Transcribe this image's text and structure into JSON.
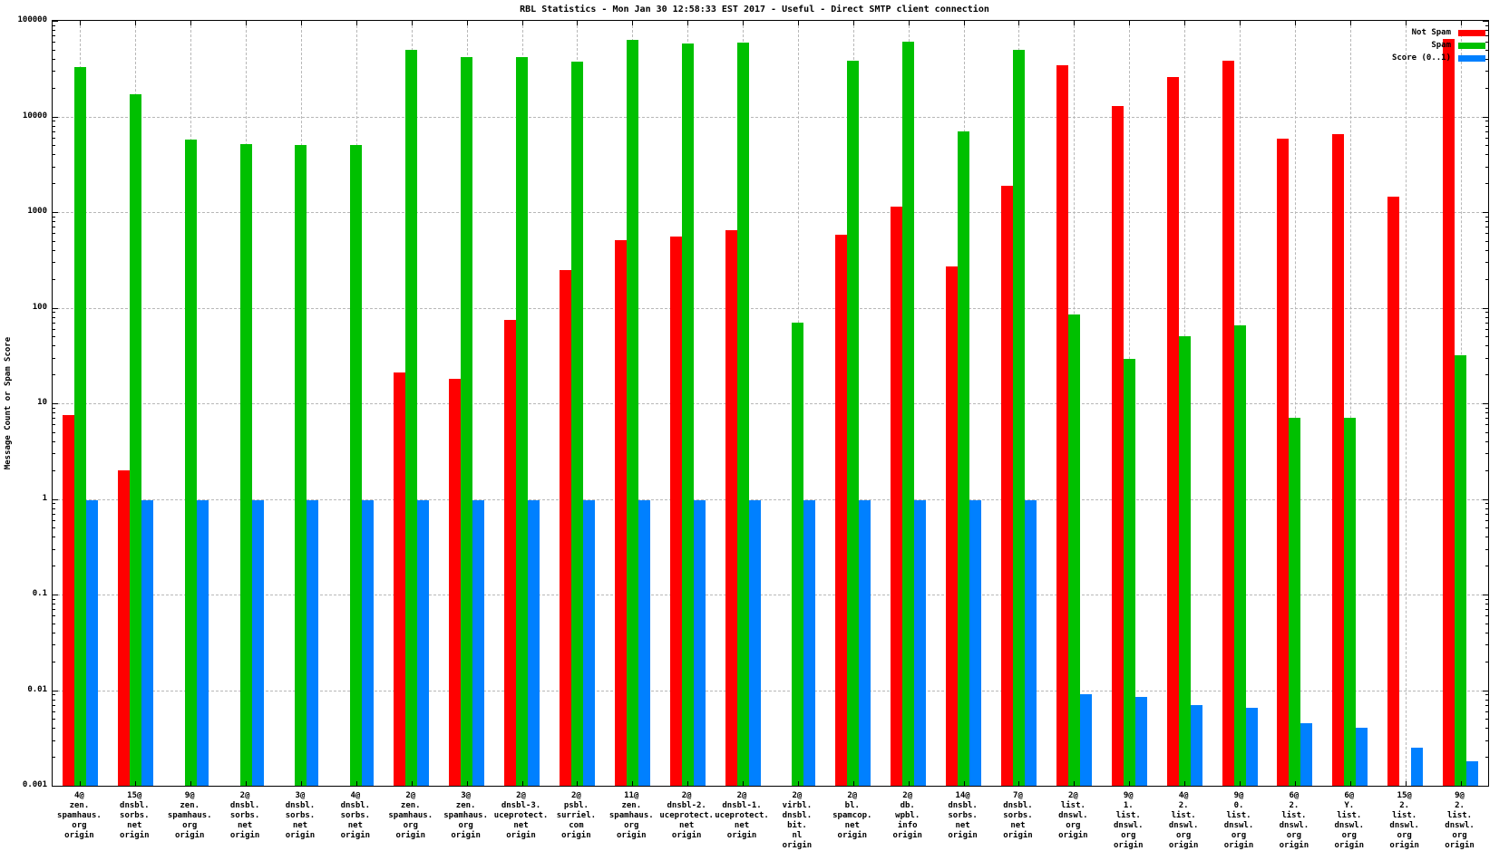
{
  "title": "RBL Statistics - Mon Jan 30 12:58:33 EST 2017 - Useful - Direct SMTP client connection",
  "y_axis_label": "Message Count or Spam Score",
  "legend": [
    {
      "label": "Not Spam",
      "color": "#ff0000"
    },
    {
      "label": "Spam",
      "color": "#00c000"
    },
    {
      "label": "Score (0..1)",
      "color": "#0080ff"
    }
  ],
  "chart_data": {
    "type": "bar",
    "y_scale": "log",
    "ylim": [
      0.001,
      100000
    ],
    "grid": true,
    "legend_position": "top-right",
    "title": "RBL Statistics - Mon Jan 30 12:58:33 EST 2017 - Useful - Direct SMTP client connection",
    "xlabel": "",
    "ylabel": "Message Count or Spam Score",
    "y_ticks": [
      "100000",
      "10000",
      "1000",
      "100",
      "10",
      "1",
      "0.1",
      "0.01",
      "0.001"
    ],
    "categories": [
      [
        "4@",
        "zen.",
        "spamhaus.",
        "org",
        "origin"
      ],
      [
        "15@",
        "dnsbl.",
        "sorbs.",
        "net",
        "origin"
      ],
      [
        "9@",
        "zen.",
        "spamhaus.",
        "org",
        "origin"
      ],
      [
        "2@",
        "dnsbl.",
        "sorbs.",
        "net",
        "origin"
      ],
      [
        "3@",
        "dnsbl.",
        "sorbs.",
        "net",
        "origin"
      ],
      [
        "4@",
        "dnsbl.",
        "sorbs.",
        "net",
        "origin"
      ],
      [
        "2@",
        "zen.",
        "spamhaus.",
        "org",
        "origin"
      ],
      [
        "3@",
        "zen.",
        "spamhaus.",
        "org",
        "origin"
      ],
      [
        "2@",
        "dnsbl-3.",
        "uceprotect.",
        "net",
        "origin"
      ],
      [
        "2@",
        "psbl.",
        "surriel.",
        "com",
        "origin"
      ],
      [
        "11@",
        "zen.",
        "spamhaus.",
        "org",
        "origin"
      ],
      [
        "2@",
        "dnsbl-2.",
        "uceprotect.",
        "net",
        "origin"
      ],
      [
        "2@",
        "dnsbl-1.",
        "uceprotect.",
        "net",
        "origin"
      ],
      [
        "2@",
        "virbl.",
        "dnsbl.",
        "bit.",
        "nl",
        "origin"
      ],
      [
        "2@",
        "bl.",
        "spamcop.",
        "net",
        "origin"
      ],
      [
        "2@",
        "db.",
        "wpbl.",
        "info",
        "origin"
      ],
      [
        "14@",
        "dnsbl.",
        "sorbs.",
        "net",
        "origin"
      ],
      [
        "7@",
        "dnsbl.",
        "sorbs.",
        "net",
        "origin"
      ],
      [
        "2@",
        "list.",
        "dnswl.",
        "org",
        "origin"
      ],
      [
        "9@",
        "1.",
        "list.",
        "dnswl.",
        "org",
        "origin"
      ],
      [
        "4@",
        "2.",
        "list.",
        "dnswl.",
        "org",
        "origin"
      ],
      [
        "9@",
        "0.",
        "list.",
        "dnswl.",
        "org",
        "origin"
      ],
      [
        "6@",
        "2.",
        "list.",
        "dnswl.",
        "org",
        "origin"
      ],
      [
        "6@",
        "Y.",
        "list.",
        "dnswl.",
        "org",
        "origin"
      ],
      [
        "15@",
        "2.",
        "list.",
        "dnswl.",
        "org",
        "origin"
      ],
      [
        "9@",
        "2.",
        "list.",
        "dnswl.",
        "org",
        "origin"
      ]
    ],
    "series": [
      {
        "name": "Not Spam",
        "key": "not-spam",
        "color": "#ff0000",
        "values": [
          7.5,
          2,
          0,
          0,
          0,
          0,
          21,
          18,
          75,
          250,
          510,
          550,
          640,
          0,
          575,
          1150,
          270,
          1900,
          34500,
          12800,
          26000,
          38000,
          5800,
          6500,
          1450,
          65000
        ]
      },
      {
        "name": "Spam",
        "key": "spam",
        "color": "#00c000",
        "values": [
          33000,
          17000,
          5700,
          5100,
          5000,
          5000,
          50000,
          42000,
          42000,
          37500,
          63000,
          58000,
          59000,
          70,
          38000,
          61000,
          7000,
          50000,
          85,
          29,
          50,
          65,
          7,
          7,
          0,
          32
        ]
      },
      {
        "name": "Score (0..1)",
        "key": "score",
        "color": "#0080ff",
        "values": [
          0.97,
          0.97,
          0.97,
          0.97,
          0.97,
          0.97,
          0.97,
          0.97,
          0.97,
          0.97,
          0.97,
          0.97,
          0.97,
          0.97,
          0.97,
          0.97,
          0.97,
          0.97,
          0.009,
          0.0085,
          0.007,
          0.0065,
          0.0045,
          0.004,
          0.0025,
          0.0018
        ]
      }
    ]
  }
}
